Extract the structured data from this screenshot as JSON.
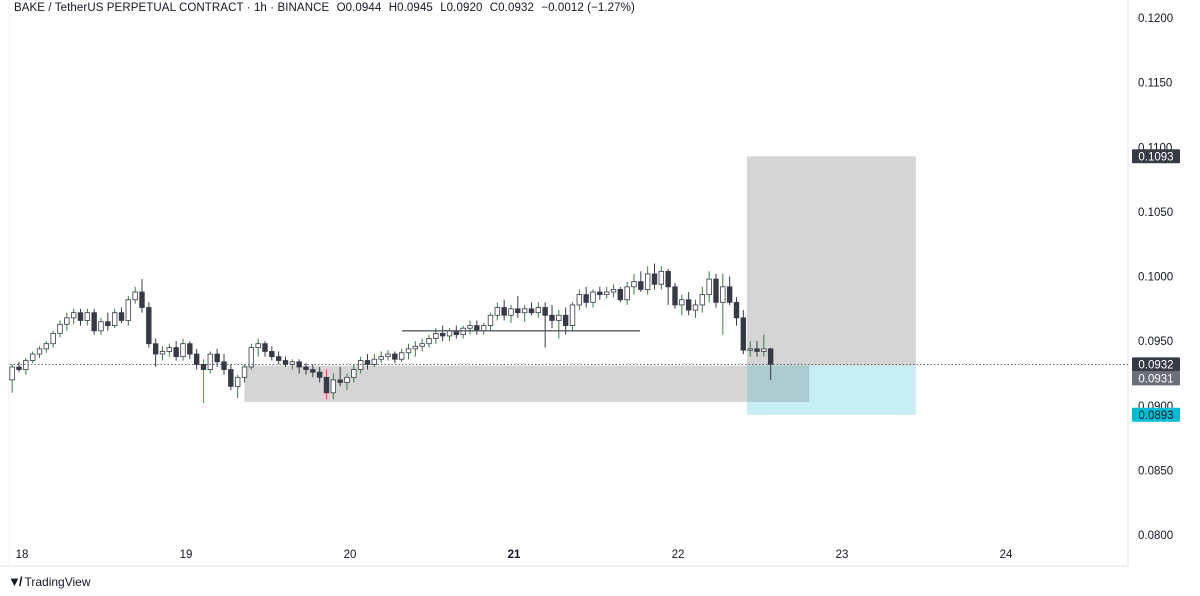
{
  "header": {
    "symbol": "BAKE / TetherUS PERPETUAL CONTRACT · 1h · BINANCE",
    "open": "O0.0944",
    "high": "H0.0945",
    "low": "L0.0920",
    "close": "C0.0932",
    "change": "−0.0012 (−1.27%)"
  },
  "footer": {
    "brand": "TradingView",
    "logo_icon": "tradingview-logo-icon"
  },
  "colors": {
    "up": "#26a69a",
    "down": "#ef5350",
    "candle_body_up": "#ffffff",
    "candle_body_down": "#363a45",
    "zone_gray": "#d3d3d3",
    "stop_zone": "#c7eef5",
    "stop_badge": "#00bcd4",
    "grid": "#f0f3fa"
  },
  "chart_data": {
    "type": "candlestick",
    "title": "",
    "xlabel": "",
    "ylabel": "",
    "y_axis_side": "right",
    "ylim": [
      0.0785,
      0.1215
    ],
    "y_ticks": [
      "0.1200",
      "0.1150",
      "0.1100",
      "0.1050",
      "0.1000",
      "0.0950",
      "0.0900",
      "0.0850",
      "0.0800"
    ],
    "y_tick_values": [
      0.12,
      0.115,
      0.11,
      0.105,
      0.1,
      0.095,
      0.09,
      0.085,
      0.08
    ],
    "x_ticks": [
      {
        "label": "18",
        "day": 18,
        "bold": false
      },
      {
        "label": "19",
        "day": 19,
        "bold": false
      },
      {
        "label": "20",
        "day": 20,
        "bold": false
      },
      {
        "label": "21",
        "day": 21,
        "bold": true
      },
      {
        "label": "22",
        "day": 22,
        "bold": false
      },
      {
        "label": "23",
        "day": 23,
        "bold": false
      },
      {
        "label": "24",
        "day": 24,
        "bold": false
      }
    ],
    "candle_start_day": 17.94,
    "candle_hours": 1,
    "candles": [
      [
        0.092,
        0.0932,
        0.091,
        0.093
      ],
      [
        0.093,
        0.0934,
        0.0926,
        0.0928
      ],
      [
        0.0928,
        0.0937,
        0.0924,
        0.0935
      ],
      [
        0.0935,
        0.0942,
        0.0933,
        0.094
      ],
      [
        0.094,
        0.0946,
        0.0937,
        0.0944
      ],
      [
        0.0944,
        0.095,
        0.0941,
        0.0948
      ],
      [
        0.0948,
        0.0958,
        0.0945,
        0.0956
      ],
      [
        0.0956,
        0.0966,
        0.0953,
        0.0963
      ],
      [
        0.0963,
        0.0972,
        0.0958,
        0.0968
      ],
      [
        0.0968,
        0.0975,
        0.0963,
        0.0972
      ],
      [
        0.0972,
        0.0975,
        0.0962,
        0.0966
      ],
      [
        0.0966,
        0.0975,
        0.0962,
        0.0972
      ],
      [
        0.0972,
        0.0975,
        0.0955,
        0.0958
      ],
      [
        0.0958,
        0.0968,
        0.0955,
        0.0965
      ],
      [
        0.0965,
        0.0972,
        0.0958,
        0.0962
      ],
      [
        0.0962,
        0.0975,
        0.096,
        0.0972
      ],
      [
        0.0972,
        0.0976,
        0.0964,
        0.0966
      ],
      [
        0.0966,
        0.0985,
        0.0962,
        0.0982
      ],
      [
        0.0982,
        0.0992,
        0.0979,
        0.0988
      ],
      [
        0.0988,
        0.0998,
        0.0972,
        0.0976
      ],
      [
        0.0976,
        0.098,
        0.0945,
        0.0948
      ],
      [
        0.0948,
        0.0952,
        0.093,
        0.094
      ],
      [
        0.094,
        0.0946,
        0.0935,
        0.0942
      ],
      [
        0.0942,
        0.0948,
        0.0938,
        0.0945
      ],
      [
        0.0945,
        0.095,
        0.0935,
        0.0938
      ],
      [
        0.0938,
        0.0952,
        0.0935,
        0.0948
      ],
      [
        0.0948,
        0.095,
        0.0936,
        0.094
      ],
      [
        0.094,
        0.0944,
        0.0928,
        0.0932
      ],
      [
        0.0932,
        0.0936,
        0.0902,
        0.0928
      ],
      [
        0.0928,
        0.0942,
        0.0925,
        0.094
      ],
      [
        0.094,
        0.0944,
        0.093,
        0.0934
      ],
      [
        0.0934,
        0.094,
        0.0924,
        0.0928
      ],
      [
        0.0928,
        0.0932,
        0.0912,
        0.0915
      ],
      [
        0.0915,
        0.0924,
        0.0906,
        0.0922
      ],
      [
        0.0922,
        0.0932,
        0.0918,
        0.093
      ],
      [
        0.093,
        0.0948,
        0.0928,
        0.0945
      ],
      [
        0.0945,
        0.0952,
        0.0938,
        0.0948
      ],
      [
        0.0948,
        0.095,
        0.0938,
        0.0942
      ],
      [
        0.0942,
        0.0946,
        0.0935,
        0.0938
      ],
      [
        0.0938,
        0.0942,
        0.0932,
        0.0935
      ],
      [
        0.0935,
        0.0938,
        0.093,
        0.0932
      ],
      [
        0.0932,
        0.0936,
        0.0928,
        0.0934
      ],
      [
        0.0934,
        0.0936,
        0.0925,
        0.093
      ],
      [
        0.093,
        0.0933,
        0.0924,
        0.0928
      ],
      [
        0.0928,
        0.0932,
        0.0922,
        0.0926
      ],
      [
        0.0926,
        0.093,
        0.0918,
        0.0922
      ],
      [
        0.0922,
        0.0928,
        0.0905,
        0.091
      ],
      [
        0.091,
        0.0925,
        0.0905,
        0.092
      ],
      [
        0.092,
        0.093,
        0.0915,
        0.0918
      ],
      [
        0.0918,
        0.0925,
        0.0912,
        0.0922
      ],
      [
        0.0922,
        0.0932,
        0.0918,
        0.0928
      ],
      [
        0.0928,
        0.0938,
        0.0925,
        0.0935
      ],
      [
        0.0935,
        0.094,
        0.0928,
        0.0932
      ],
      [
        0.0932,
        0.094,
        0.093,
        0.0936
      ],
      [
        0.0936,
        0.0942,
        0.0933,
        0.0938
      ],
      [
        0.0938,
        0.0943,
        0.0935,
        0.094
      ],
      [
        0.094,
        0.0942,
        0.0933,
        0.0936
      ],
      [
        0.0936,
        0.0944,
        0.0934,
        0.0941
      ],
      [
        0.0941,
        0.0948,
        0.0936,
        0.0944
      ],
      [
        0.0944,
        0.095,
        0.0938,
        0.0946
      ],
      [
        0.0946,
        0.0952,
        0.0942,
        0.0948
      ],
      [
        0.0948,
        0.0955,
        0.0945,
        0.0952
      ],
      [
        0.0952,
        0.096,
        0.0948,
        0.0956
      ],
      [
        0.0956,
        0.0962,
        0.095,
        0.0954
      ],
      [
        0.0954,
        0.096,
        0.095,
        0.0958
      ],
      [
        0.0958,
        0.0962,
        0.0952,
        0.0955
      ],
      [
        0.0955,
        0.0962,
        0.0952,
        0.096
      ],
      [
        0.096,
        0.0966,
        0.0955,
        0.0962
      ],
      [
        0.0962,
        0.0966,
        0.0955,
        0.0958
      ],
      [
        0.0958,
        0.0964,
        0.0955,
        0.0962
      ],
      [
        0.0962,
        0.0972,
        0.0958,
        0.097
      ],
      [
        0.097,
        0.098,
        0.0966,
        0.0976
      ],
      [
        0.0976,
        0.0982,
        0.0966,
        0.097
      ],
      [
        0.097,
        0.0978,
        0.0964,
        0.0975
      ],
      [
        0.0975,
        0.0985,
        0.0968,
        0.0972
      ],
      [
        0.0972,
        0.0978,
        0.0965,
        0.0975
      ],
      [
        0.0975,
        0.098,
        0.097,
        0.0972
      ],
      [
        0.0972,
        0.098,
        0.0968,
        0.0976
      ],
      [
        0.0976,
        0.098,
        0.0945,
        0.097
      ],
      [
        0.097,
        0.0978,
        0.096,
        0.0966
      ],
      [
        0.0966,
        0.0974,
        0.0952,
        0.097
      ],
      [
        0.097,
        0.0976,
        0.0955,
        0.0962
      ],
      [
        0.0962,
        0.098,
        0.0958,
        0.0978
      ],
      [
        0.0978,
        0.099,
        0.0974,
        0.0986
      ],
      [
        0.0986,
        0.0992,
        0.0976,
        0.098
      ],
      [
        0.098,
        0.099,
        0.0976,
        0.0988
      ],
      [
        0.0988,
        0.0992,
        0.0982,
        0.0986
      ],
      [
        0.0986,
        0.0992,
        0.0983,
        0.0988
      ],
      [
        0.0988,
        0.0994,
        0.0984,
        0.099
      ],
      [
        0.099,
        0.0992,
        0.098,
        0.0982
      ],
      [
        0.0982,
        0.0996,
        0.0978,
        0.0992
      ],
      [
        0.0992,
        0.1002,
        0.0986,
        0.0996
      ],
      [
        0.0996,
        0.1004,
        0.0988,
        0.099
      ],
      [
        0.099,
        0.1008,
        0.0986,
        0.1002
      ],
      [
        0.1002,
        0.101,
        0.099,
        0.0994
      ],
      [
        0.0994,
        0.1008,
        0.099,
        0.1004
      ],
      [
        0.1004,
        0.1006,
        0.0978,
        0.0992
      ],
      [
        0.0992,
        0.0995,
        0.0975,
        0.0978
      ],
      [
        0.0978,
        0.0986,
        0.097,
        0.0982
      ],
      [
        0.0982,
        0.0988,
        0.097,
        0.0974
      ],
      [
        0.0974,
        0.0982,
        0.0968,
        0.0978
      ],
      [
        0.0978,
        0.0992,
        0.0972,
        0.0986
      ],
      [
        0.0986,
        0.1004,
        0.098,
        0.0998
      ],
      [
        0.0998,
        0.1002,
        0.0976,
        0.098
      ],
      [
        0.098,
        0.1002,
        0.0955,
        0.0992
      ],
      [
        0.0992,
        0.1,
        0.0978,
        0.098
      ],
      [
        0.098,
        0.0984,
        0.0962,
        0.0968
      ],
      [
        0.0968,
        0.0974,
        0.094,
        0.0943
      ],
      [
        0.0943,
        0.095,
        0.0938,
        0.0944
      ],
      [
        0.0944,
        0.095,
        0.0938,
        0.0942
      ],
      [
        0.0942,
        0.0955,
        0.0938,
        0.0944
      ],
      [
        0.0944,
        0.0945,
        0.092,
        0.0932
      ]
    ],
    "price_line": {
      "value": 0.0932,
      "label": "0.0932"
    },
    "horizontal_level": {
      "value": 0.0958,
      "from_index": 60,
      "to_index": 91
    },
    "demand_zone": {
      "top": 0.0931,
      "bottom": 0.0903,
      "from_index": 34,
      "to_day": 22.8
    },
    "position": {
      "entry": 0.0931,
      "target": 0.1093,
      "stop": 0.0893,
      "from_day": 22.42,
      "to_day": 23.45,
      "labels": {
        "target": "0.1093",
        "entry": "0.0931",
        "stop": "0.0893"
      }
    }
  }
}
